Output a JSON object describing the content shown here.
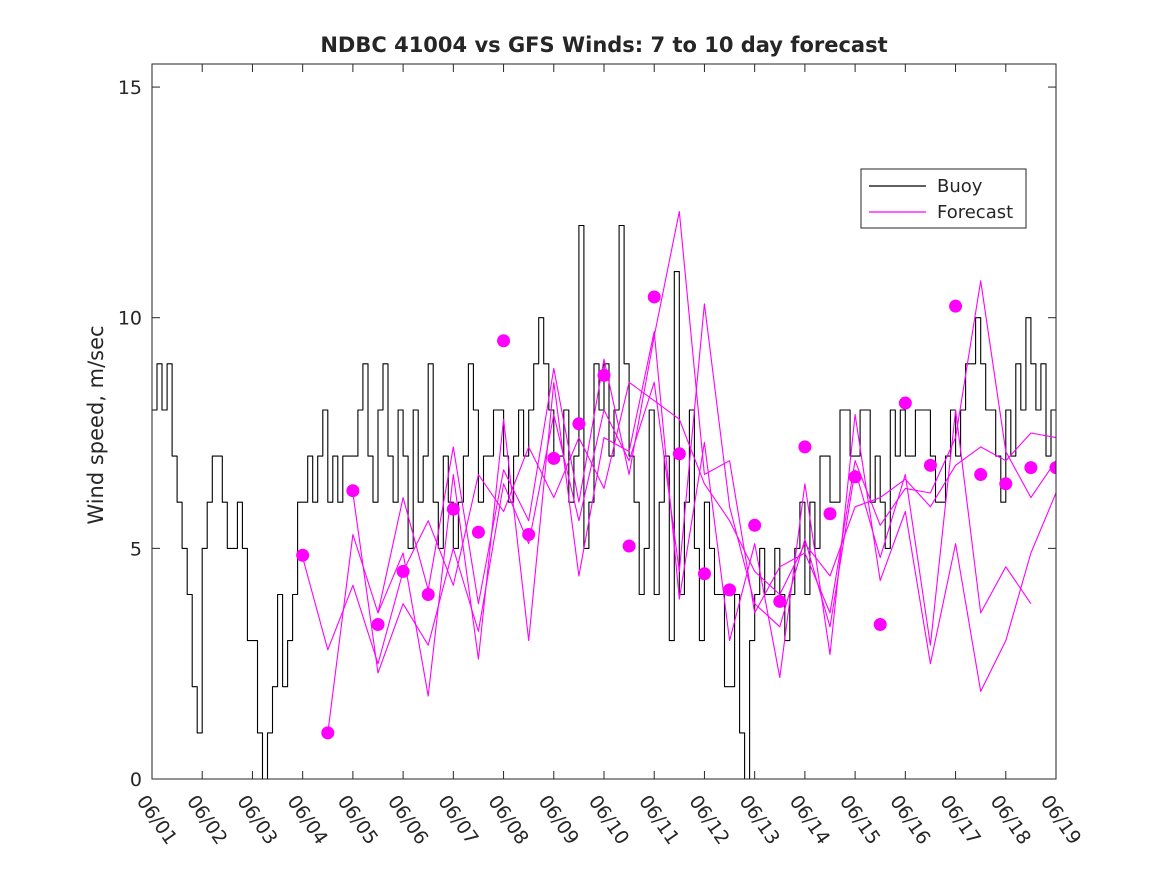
{
  "chart_data": {
    "type": "line",
    "title": "NDBC 41004 vs GFS Winds: 7 to 10 day forecast",
    "xlabel": "",
    "ylabel": "Wind speed, m/sec",
    "xlim": [
      "06/01",
      "06/19"
    ],
    "ylim": [
      0,
      15.5
    ],
    "x_ticks": [
      "06/01",
      "06/02",
      "06/03",
      "06/04",
      "06/05",
      "06/06",
      "06/07",
      "06/08",
      "06/09",
      "06/10",
      "06/11",
      "06/12",
      "06/13",
      "06/14",
      "06/15",
      "06/16",
      "06/17",
      "06/18",
      "06/19"
    ],
    "y_ticks": [
      0,
      5,
      10,
      15
    ],
    "grid": false,
    "legend": {
      "placement": "top-right",
      "entries": [
        "Buoy",
        "Forecast"
      ]
    },
    "colors": {
      "buoy": "#000000",
      "forecast": "#ff00ff",
      "axis": "#262626"
    },
    "series": [
      {
        "name": "Buoy",
        "x": [
          0.0,
          0.1,
          0.2,
          0.3,
          0.4,
          0.5,
          0.6,
          0.7,
          0.8,
          0.9,
          1.0,
          1.1,
          1.2,
          1.3,
          1.4,
          1.5,
          1.6,
          1.7,
          1.8,
          1.9,
          2.0,
          2.1,
          2.2,
          2.3,
          2.4,
          2.5,
          2.6,
          2.7,
          2.8,
          2.9,
          3.0,
          3.1,
          3.2,
          3.3,
          3.4,
          3.5,
          3.6,
          3.7,
          3.8,
          3.9,
          4.0,
          4.1,
          4.2,
          4.3,
          4.4,
          4.5,
          4.6,
          4.7,
          4.8,
          4.9,
          5.0,
          5.1,
          5.2,
          5.3,
          5.4,
          5.5,
          5.6,
          5.7,
          5.8,
          5.9,
          6.0,
          6.1,
          6.2,
          6.3,
          6.4,
          6.5,
          6.6,
          6.7,
          6.8,
          6.9,
          7.0,
          7.1,
          7.2,
          7.3,
          7.4,
          7.5,
          7.6,
          7.7,
          7.8,
          7.9,
          8.0,
          8.1,
          8.2,
          8.3,
          8.4,
          8.5,
          8.6,
          8.7,
          8.8,
          8.9,
          9.0,
          9.1,
          9.2,
          9.3,
          9.4,
          9.5,
          9.6,
          9.7,
          9.8,
          9.9,
          10.0,
          10.1,
          10.2,
          10.3,
          10.4,
          10.5,
          10.6,
          10.7,
          10.8,
          10.9,
          11.0,
          11.1,
          11.2,
          11.3,
          11.4,
          11.5,
          11.6,
          11.7,
          11.8,
          11.9,
          12.0,
          12.1,
          12.2,
          12.3,
          12.4,
          12.5,
          12.6,
          12.7,
          12.8,
          12.9,
          13.0,
          13.1,
          13.2,
          13.3,
          13.4,
          13.5,
          13.6,
          13.7,
          13.8,
          13.9,
          14.0,
          14.1,
          14.2,
          14.3,
          14.4,
          14.5,
          14.6,
          14.7,
          14.8,
          14.9,
          15.0,
          15.1,
          15.2,
          15.3,
          15.4,
          15.5,
          15.6,
          15.7,
          15.8,
          15.9,
          16.0,
          16.1,
          16.2,
          16.3,
          16.4,
          16.5,
          16.6,
          16.7,
          16.8,
          16.9,
          17.0,
          17.1,
          17.2,
          17.3,
          17.4,
          17.5,
          17.6,
          17.7,
          17.8,
          17.9,
          18.0
        ],
        "values": [
          8,
          9,
          8,
          9,
          7,
          6,
          5,
          4,
          2,
          1,
          5,
          6,
          7,
          7,
          6,
          5,
          5,
          6,
          5,
          3,
          3,
          1,
          0,
          1,
          2,
          4,
          2,
          3,
          4,
          6,
          6,
          7,
          6,
          7,
          8,
          6,
          7,
          6,
          7,
          7,
          7,
          8,
          9,
          7,
          6,
          8,
          9,
          7,
          6,
          8,
          7,
          5,
          8,
          6,
          7,
          9,
          6,
          5,
          7,
          6,
          5,
          6,
          7,
          9,
          8,
          6,
          7,
          7,
          8,
          8,
          7,
          6,
          7,
          8,
          7,
          8,
          9,
          10,
          9,
          8,
          7,
          7,
          8,
          6,
          7,
          12,
          5,
          6,
          9,
          8,
          9,
          7,
          8,
          12,
          9,
          7,
          6,
          4,
          5,
          8,
          4,
          6,
          7,
          3,
          11,
          4,
          6,
          8,
          5,
          3,
          6,
          5,
          4,
          4,
          2,
          2,
          4,
          1,
          0,
          3,
          4,
          5,
          4,
          4,
          5,
          4,
          3,
          4,
          5,
          6,
          4,
          6,
          5,
          7,
          7,
          6,
          6,
          8,
          8,
          7,
          7,
          8,
          8,
          6,
          7,
          6,
          5,
          8,
          7,
          8,
          7,
          7,
          8,
          8,
          8,
          7,
          6,
          6,
          7,
          8,
          7,
          8,
          9,
          9,
          10,
          9,
          8,
          8,
          7,
          6,
          8,
          7,
          9,
          8,
          10,
          9,
          8,
          9,
          7,
          8,
          8
        ]
      },
      {
        "name": "Forecast",
        "x": [
          3.0,
          3.5,
          4.0,
          4.5,
          5.0,
          5.5,
          6.0,
          6.5,
          7.0,
          7.5,
          8.0,
          8.5,
          9.0,
          9.5,
          10.0,
          10.5,
          11.0,
          11.5,
          12.0,
          12.5,
          13.0,
          13.5,
          14.0,
          14.5,
          15.0,
          15.5,
          16.0,
          16.5,
          17.0,
          17.5,
          18.0
        ],
        "values": [
          4.8,
          2.8,
          4.2,
          2.5,
          4.5,
          5.6,
          4.2,
          6.6,
          5.8,
          7.2,
          6.1,
          7.4,
          6.3,
          8.6,
          8.2,
          7.8,
          6.4,
          5.6,
          4.5,
          4.0,
          5.1,
          4.4,
          5.9,
          6.1,
          6.5,
          5.9,
          6.8,
          7.2,
          6.9,
          7.5,
          7.4
        ]
      },
      {
        "name": "Forecast",
        "x": [
          3.5,
          4.0,
          4.5,
          5.0,
          5.5,
          6.0,
          6.5,
          7.0,
          7.5,
          8.0,
          8.5,
          9.0,
          9.5,
          10.0,
          10.5,
          11.0,
          11.5,
          12.0,
          12.5,
          13.0,
          13.5,
          14.0,
          14.5,
          15.0,
          15.5,
          16.0,
          16.5,
          17.0,
          17.5,
          18.0
        ],
        "values": [
          1.0,
          5.3,
          3.6,
          6.1,
          4.1,
          7.2,
          3.8,
          6.7,
          5.6,
          8.9,
          6.0,
          9.1,
          6.6,
          9.6,
          12.3,
          6.6,
          6.9,
          3.6,
          4.6,
          4.9,
          3.6,
          6.9,
          5.5,
          6.3,
          6.2,
          7.4,
          10.8,
          7.1,
          6.1,
          6.9
        ]
      },
      {
        "name": "Forecast",
        "x": [
          4.0,
          4.5,
          5.0,
          5.5,
          6.0,
          6.5,
          7.0,
          7.5,
          8.0,
          8.5,
          9.0,
          9.5,
          10.0,
          10.5,
          11.0,
          11.5,
          12.0,
          12.5,
          13.0,
          13.5,
          14.0,
          14.5,
          15.0,
          15.5,
          16.0,
          16.5,
          17.0,
          17.5
        ],
        "values": [
          6.2,
          2.3,
          3.8,
          2.9,
          5.0,
          3.2,
          6.4,
          5.1,
          7.9,
          5.6,
          8.0,
          6.9,
          8.6,
          4.5,
          10.3,
          5.9,
          3.8,
          3.3,
          5.2,
          3.3,
          6.7,
          4.8,
          6.6,
          2.9,
          8.0,
          3.6,
          4.6,
          3.8
        ]
      },
      {
        "name": "Forecast",
        "x": [
          4.5,
          5.0,
          5.5,
          6.0,
          6.5,
          7.0,
          7.5,
          8.0,
          8.5,
          9.0,
          9.5,
          10.0,
          10.5,
          11.0,
          11.5,
          12.0,
          12.5,
          13.0,
          13.5,
          14.0,
          14.5,
          15.0,
          15.5,
          16.0,
          16.5,
          17.0,
          17.5,
          18.0
        ],
        "values": [
          3.6,
          4.9,
          1.8,
          6.6,
          2.6,
          7.8,
          3.0,
          8.6,
          4.4,
          7.4,
          7.1,
          9.7,
          3.9,
          7.3,
          3.0,
          5.1,
          2.2,
          6.4,
          2.7,
          7.9,
          4.3,
          5.8,
          2.5,
          5.1,
          1.9,
          3.0,
          4.9,
          6.2
        ]
      }
    ],
    "markers": {
      "name": "Forecast",
      "x": [
        3.0,
        3.5,
        4.0,
        4.5,
        5.0,
        5.5,
        6.0,
        6.5,
        7.0,
        7.5,
        8.0,
        8.5,
        9.0,
        9.5,
        10.0,
        10.5,
        11.0,
        11.5,
        12.0,
        12.5,
        13.0,
        13.5,
        14.0,
        14.5,
        15.0,
        15.5,
        16.0,
        16.5,
        17.0,
        17.5,
        18.0
      ],
      "values": [
        4.85,
        1.0,
        6.25,
        3.35,
        4.5,
        4.0,
        5.85,
        5.35,
        9.5,
        5.3,
        6.95,
        7.7,
        8.75,
        5.05,
        10.45,
        7.05,
        4.45,
        4.1,
        5.5,
        3.85,
        7.2,
        5.75,
        6.55,
        3.35,
        8.15,
        6.8,
        10.25,
        6.6,
        6.4,
        6.75,
        6.75
      ]
    }
  }
}
